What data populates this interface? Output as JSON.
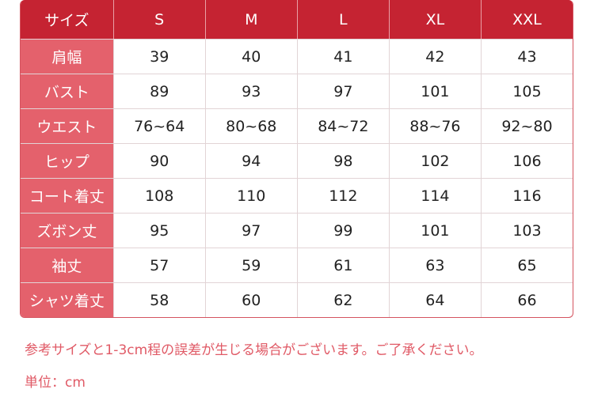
{
  "table": {
    "header": [
      "サイズ",
      "S",
      "M",
      "L",
      "XL",
      "XXL"
    ],
    "rows": [
      [
        "肩幅",
        "39",
        "40",
        "41",
        "42",
        "43"
      ],
      [
        "バスト",
        "89",
        "93",
        "97",
        "101",
        "105"
      ],
      [
        "ウエスト",
        "76~64",
        "80~68",
        "84~72",
        "88~76",
        "92~80"
      ],
      [
        "ヒップ",
        "90",
        "94",
        "98",
        "102",
        "106"
      ],
      [
        "コート着丈",
        "108",
        "110",
        "112",
        "114",
        "116"
      ],
      [
        "ズボン丈",
        "95",
        "97",
        "99",
        "101",
        "103"
      ],
      [
        "袖丈",
        "57",
        "59",
        "61",
        "63",
        "65"
      ],
      [
        "シャツ着丈",
        "58",
        "60",
        "62",
        "64",
        "66"
      ]
    ]
  },
  "notes": {
    "disclaimer": "参考サイズと1-3cm程の誤差が生じる場合がございます。ご了承ください。",
    "unit": "単位：cm"
  },
  "colors": {
    "header_bg": "#c52332",
    "label_bg": "#e4616c",
    "note_text": "#e05a66"
  }
}
